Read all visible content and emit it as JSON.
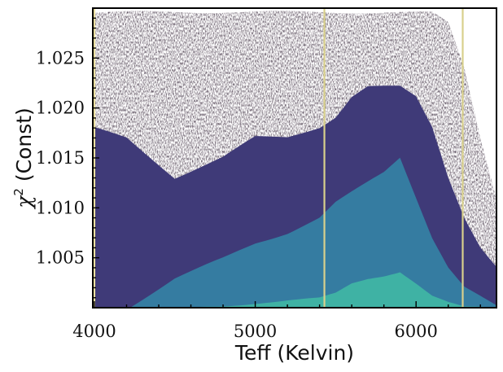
{
  "chart_data": {
    "type": "heatmap",
    "title": "",
    "xlabel": "Teff (Kelvin)",
    "ylabel_symbol": "χ",
    "ylabel_superscript": "2",
    "ylabel_text": "(Const)",
    "xlim": [
      3990,
      6500
    ],
    "ylim": [
      1.0,
      1.03
    ],
    "x_ticks": [
      4000,
      5000,
      6000
    ],
    "x_tick_labels": [
      "4000",
      "5000",
      "6000"
    ],
    "y_ticks": [
      1.005,
      1.01,
      1.015,
      1.02,
      1.025
    ],
    "y_tick_labels": [
      "1.005",
      "1.010",
      "1.015",
      "1.020",
      "1.025"
    ],
    "density_level_colors": [
      "#2b1b2e",
      "#3f3a78",
      "#357ca1",
      "#3fb2a4"
    ],
    "density_contours": {
      "x": [
        4000,
        4200,
        4500,
        4800,
        5000,
        5200,
        5400,
        5500,
        5600,
        5700,
        5800,
        5900,
        6000,
        6100,
        6200,
        6300,
        6400,
        6500
      ],
      "level_1_top": [
        1.0295,
        1.0295,
        1.0295,
        1.0295,
        1.0295,
        1.0295,
        1.0295,
        1.0295,
        1.0295,
        1.0295,
        1.0295,
        1.0295,
        1.0295,
        1.0295,
        1.0285,
        1.024,
        1.017,
        1.011
      ],
      "level_2_top": [
        1.018,
        1.017,
        1.013,
        1.015,
        1.017,
        1.017,
        1.018,
        1.019,
        1.021,
        1.022,
        1.022,
        1.022,
        1.021,
        1.018,
        1.013,
        1.009,
        1.006,
        1.004
      ],
      "level_3_top": [
        1.0,
        1.0,
        1.003,
        1.005,
        1.0065,
        1.0075,
        1.009,
        1.0105,
        1.0115,
        1.0125,
        1.0135,
        1.015,
        1.011,
        1.007,
        1.004,
        1.002,
        1.001,
        1.0
      ],
      "level_4_top": [
        1.0,
        1.0,
        1.0,
        1.0003,
        1.0006,
        1.0008,
        1.001,
        1.0015,
        1.0025,
        1.003,
        1.0033,
        1.0037,
        1.0025,
        1.0012,
        1.0005,
        1.0,
        1.0,
        1.0
      ]
    },
    "vertical_lines": [
      {
        "x": 4000,
        "color": "#eadfa0"
      },
      {
        "x": 5430,
        "color": "#d8d08c"
      },
      {
        "x": 6290,
        "color": "#d8d08c"
      }
    ]
  }
}
